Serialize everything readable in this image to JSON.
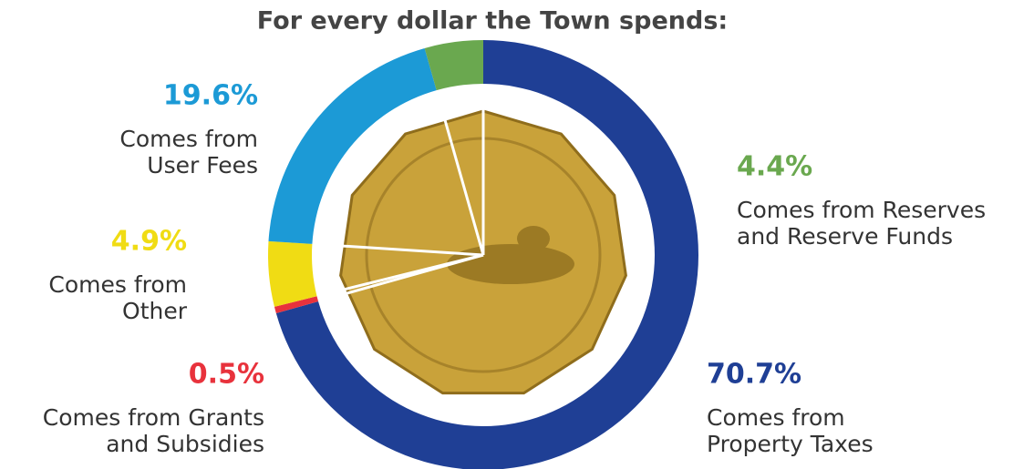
{
  "chart_data": {
    "type": "donut",
    "title": "For every dollar the Town spends:",
    "categories": [
      [
        "Comes from",
        "Property Taxes"
      ],
      [
        "Comes from Grants",
        "and Subsidies"
      ],
      [
        "Comes from",
        "Other"
      ],
      [
        "Comes from",
        "User Fees"
      ],
      [
        "Comes from Reserves",
        "and Reserve Funds"
      ]
    ],
    "values": [
      70.7,
      0.5,
      4.9,
      19.6,
      4.4
    ],
    "value_labels": [
      "70.7%",
      "0.5%",
      "4.9%",
      "19.6%",
      "4.4%"
    ],
    "colors": [
      "#1f3f95",
      "#e8323c",
      "#f0dc14",
      "#1c9ad6",
      "#6aa84f"
    ]
  }
}
